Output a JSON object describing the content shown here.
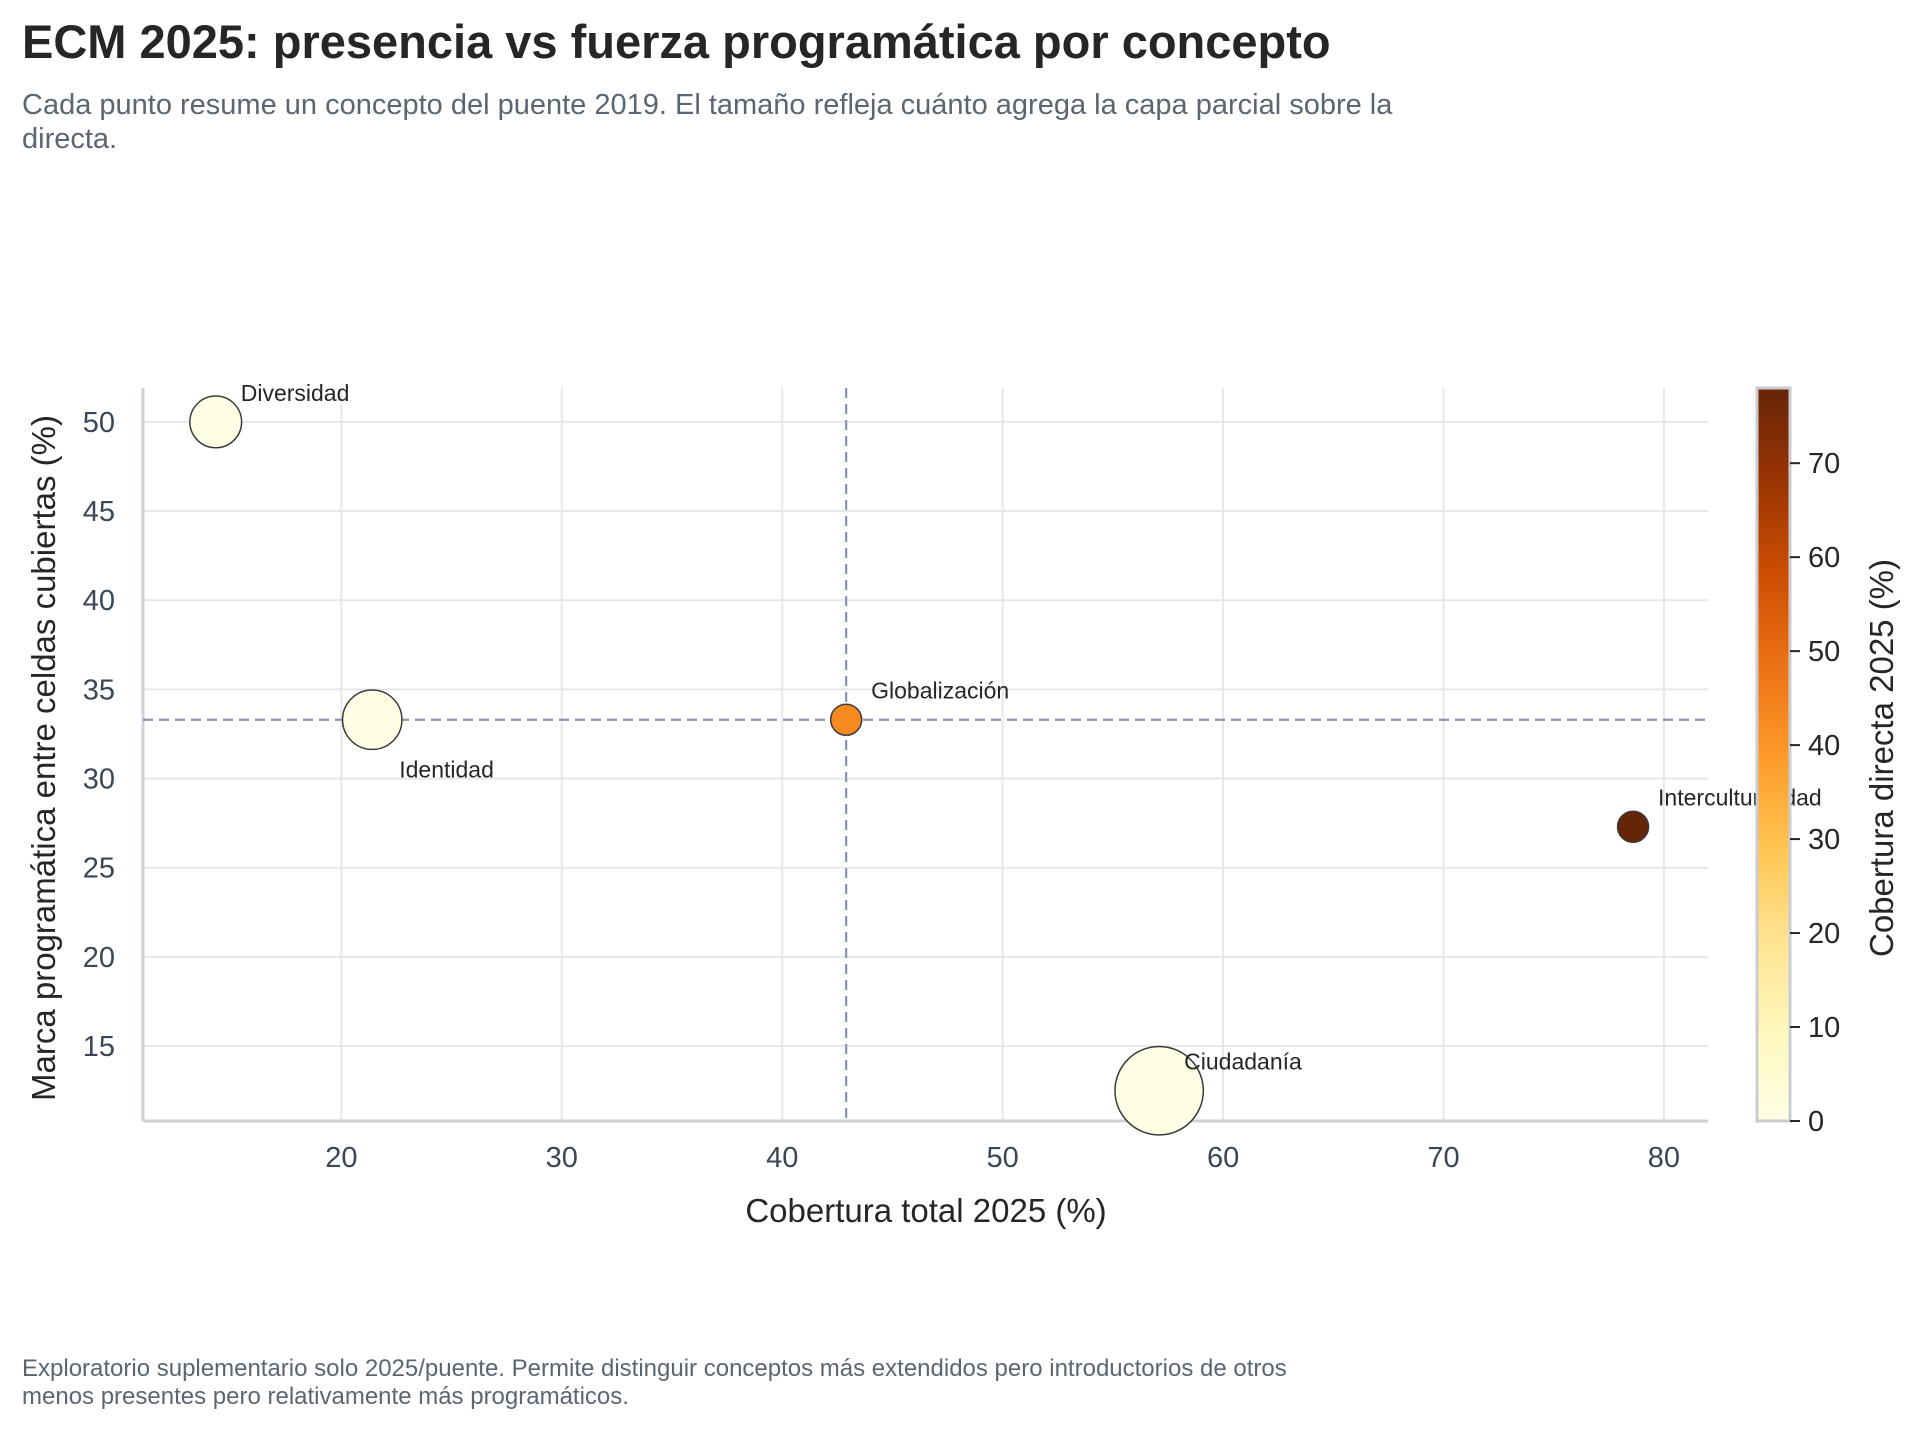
{
  "title": "ECM 2025: presencia vs fuerza programática por concepto",
  "subtitle": "Cada punto resume un concepto del puente 2019. El tamaño refleja cuánto agrega la capa parcial sobre la directa.",
  "footnote": "Exploratorio suplementario solo 2025/puente. Permite distinguir conceptos más extendidos pero introductorios de otros menos presentes pero relativamente más programáticos.",
  "chart_data": {
    "type": "scatter",
    "xlabel": "Cobertura total 2025 (%)",
    "ylabel": "Marca programática entre celdas cubiertas (%)",
    "colorbar_label": "Cobertura directa 2025 (%)",
    "xlim": [
      11,
      82
    ],
    "ylim": [
      10.8,
      51.9
    ],
    "xticks": [
      20,
      30,
      40,
      50,
      60,
      70,
      80
    ],
    "yticks": [
      15,
      20,
      25,
      30,
      35,
      40,
      45,
      50
    ],
    "colorbar_range": [
      0,
      78
    ],
    "colorbar_ticks": [
      0,
      10,
      20,
      30,
      40,
      50,
      60,
      70
    ],
    "reference_lines": {
      "x": 42.9,
      "y": 33.3
    },
    "grid": true,
    "points": [
      {
        "label": "Diversidad",
        "x": 14.3,
        "y": 50.0,
        "color_value": 0,
        "size_value": 14.3,
        "label_pos": "above-right"
      },
      {
        "label": "Identidad",
        "x": 21.4,
        "y": 33.3,
        "color_value": 0,
        "size_value": 21.4,
        "label_pos": "below-right"
      },
      {
        "label": "Globalización",
        "x": 42.9,
        "y": 33.3,
        "color_value": 42.9,
        "size_value": 0,
        "label_pos": "above-right"
      },
      {
        "label": "Interculturalidad",
        "x": 78.6,
        "y": 27.3,
        "color_value": 78.6,
        "size_value": 0,
        "label_pos": "above-right"
      },
      {
        "label": "Ciudadanía",
        "x": 57.1,
        "y": 12.5,
        "color_value": 0,
        "size_value": 57.1,
        "label_pos": "above-right"
      }
    ]
  }
}
